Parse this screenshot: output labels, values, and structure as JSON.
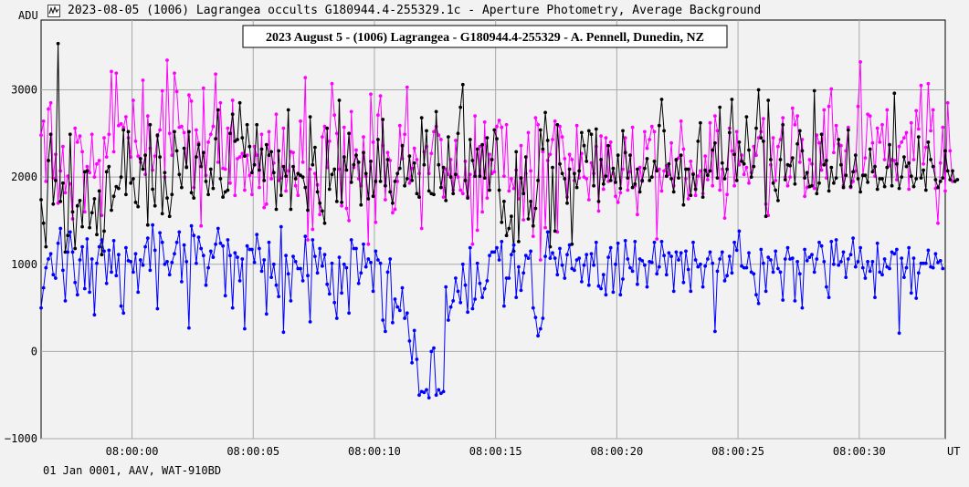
{
  "window": {
    "title": "2023-08-05 (1006) Lagrangea occults G180944.4-255329.1c - Aperture Photometry, Average Background",
    "icon": "lightcurve-app-icon"
  },
  "footer": {
    "text": "01 Jan 0001, AAV, WAT-910BD"
  },
  "chart_data": {
    "type": "line",
    "title": "2023 August 5 - (1006) Lagrangea - G180944.4-255329 - A. Pennell, Dunedin, NZ",
    "ylabel": "ADU",
    "xlabel": "UT",
    "ylim": [
      -1000,
      3800
    ],
    "xlim": [
      0,
      373
    ],
    "grid": true,
    "y_ticks": [
      "3000",
      "2000",
      "1000",
      "0",
      "−1000"
    ],
    "y_tick_values": [
      3000,
      2000,
      1000,
      0,
      -1000
    ],
    "x_ticks": [
      "08:00:00",
      "08:00:05",
      "08:00:10",
      "08:00:15",
      "08:00:20",
      "08:00:25",
      "08:00:30"
    ],
    "x_tick_values": [
      37.5,
      87.5,
      137.5,
      187.5,
      237.5,
      287.5,
      337.5
    ],
    "series": [
      {
        "color": "#ff00ff",
        "values": [
          2480,
          2640,
          1950,
          2780,
          2850,
          1990,
          2260,
          1700,
          2070,
          2350,
          1820,
          2010,
          1920,
          1520,
          2560,
          2400,
          2470,
          2290,
          1600,
          2120,
          2050,
          2490,
          2000,
          2150,
          2190,
          1560,
          2450,
          2230,
          2490,
          3210,
          2290,
          3190,
          2590,
          2610,
          2570,
          2690,
          2450,
          2230,
          2880,
          2410,
          2240,
          2170,
          3110,
          2030,
          2700,
          2330,
          2080,
          2240,
          2470,
          2540,
          2990,
          2000,
          3340,
          2500,
          2250,
          3190,
          2980,
          2570,
          2580,
          2510,
          2120,
          2940,
          2870,
          1880,
          2540,
          2390,
          1440,
          3020,
          2020,
          2400,
          2490,
          2580,
          3180,
          2170,
          2850,
          2100,
          2090,
          2560,
          1930,
          2880,
          1790,
          2210,
          2230,
          2270,
          1850,
          2250,
          2020,
          1800,
          2350,
          2250,
          1880,
          2490,
          1650,
          1690,
          2520,
          1980,
          2160,
          2720,
          1960,
          1990,
          2560,
          1840,
          2070,
          2290,
          2280,
          1900,
          1790,
          2640,
          2170,
          3140,
          1280,
          2090,
          1400,
          2040,
          1910,
          1570,
          2460,
          2580,
          2110,
          2410,
          3070,
          2710,
          2500,
          2090,
          1670,
          2570,
          1640,
          1500,
          2750,
          2110,
          2310,
          1980,
          1900,
          2460,
          2010,
          1230,
          2950,
          2400,
          1480,
          2710,
          2930,
          2360,
          1740,
          2280,
          2190,
          1590,
          1630,
          1950,
          2590,
          2210,
          2490,
          3030,
          1930,
          2100,
          2330,
          2200,
          2040,
          1410,
          2290,
          2350,
          2040,
          2270,
          2520,
          2580,
          2480,
          2430,
          1770,
          2090,
          2030,
          2200,
          1850,
          2420,
          2000,
          1850,
          1810,
          2180,
          1780,
          2030,
          1230,
          2700,
          1390,
          2350,
          1600,
          2630,
          1760,
          2260,
          2040,
          2060,
          2580,
          2650,
          2570,
          2010,
          2600,
          1840,
          1980,
          1870,
          2080,
          1750,
          2360,
          1510,
          2040,
          2510,
          2070,
          1320,
          2680,
          2600,
          1050,
          2290,
          1420,
          2190,
          2260,
          2430,
          2640,
          1370,
          2580,
          2460,
          2210,
          1770,
          2260,
          2200,
          1960,
          2590,
          1990,
          2270,
          2000,
          1980,
          1740,
          2160,
          2040,
          2350,
          1610,
          2470,
          1860,
          2450,
          1950,
          2400,
          2040,
          1780,
          1710,
          1820,
          2090,
          2450,
          1850,
          2060,
          2570,
          1900,
          1570,
          2110,
          1950,
          2520,
          2330,
          2430,
          2580,
          2520,
          1290,
          2090,
          1840,
          2070,
          2130,
          2030,
          2390,
          1900,
          2190,
          2220,
          2640,
          2320,
          1980,
          1750,
          2180,
          2040,
          1790,
          2010,
          2070,
          1810,
          2240,
          1970,
          2620,
          1900,
          2700,
          2530,
          1850,
          2090,
          1530,
          1800,
          2560,
          2300,
          1900,
          2520,
          2140,
          2250,
          2030,
          2110,
          1930,
          2050,
          2350,
          2250,
          2450,
          2520,
          2670,
          1690,
          1560,
          2140,
          2450,
          1960,
          2350,
          2430,
          2680,
          2000,
          1900,
          2000,
          2790,
          2600,
          2700,
          2170,
          2430,
          1780,
          1880,
          2200,
          2150,
          1870,
          2480,
          2390,
          2080,
          2770,
          1990,
          2810,
          3010,
          2280,
          2590,
          2380,
          2360,
          1900,
          2300,
          2570,
          1880,
          1950,
          2070,
          2810,
          3320,
          2020,
          2220,
          2720,
          2700,
          2390,
          2010,
          2560,
          2400,
          2600,
          2200,
          2770,
          2130,
          2200,
          2190,
          1970,
          2350,
          2400,
          2450,
          2510,
          1860,
          2620,
          2200,
          2760,
          2550,
          3050,
          2150,
          2340,
          3070,
          2530,
          2770,
          1870,
          1470,
          2160,
          2570,
          1840,
          2850,
          2300,
          1950
        ],
        "colors_hint": "magenta"
      },
      {
        "color": "#000000",
        "values": [
          1740,
          1470,
          1200,
          2190,
          2490,
          1690,
          1960,
          3530,
          1720,
          1930,
          1140,
          1330,
          2490,
          1600,
          1180,
          1670,
          1730,
          1430,
          2060,
          2070,
          1420,
          1590,
          1750,
          1340,
          1840,
          1110,
          1380,
          2060,
          2120,
          1620,
          1780,
          1890,
          1870,
          2000,
          2540,
          1800,
          2520,
          1930,
          1980,
          1710,
          1660,
          2210,
          2090,
          2250,
          1450,
          2600,
          1860,
          1670,
          2480,
          2230,
          1580,
          2050,
          1760,
          1550,
          1800,
          2520,
          2300,
          2030,
          1880,
          2330,
          2110,
          2520,
          1820,
          1760,
          2230,
          2370,
          2120,
          2280,
          1950,
          1800,
          2090,
          1870,
          2440,
          2770,
          1980,
          1770,
          1830,
          1850,
          2500,
          2720,
          2410,
          2430,
          2850,
          2450,
          2240,
          2600,
          2350,
          2050,
          2140,
          2600,
          2080,
          2320,
          1960,
          2370,
          2250,
          2290,
          2050,
          1630,
          2300,
          1790,
          2120,
          2010,
          2770,
          1630,
          2120,
          1980,
          2040,
          2020,
          2000,
          1880,
          1620,
          2690,
          2140,
          2340,
          1830,
          1700,
          1610,
          1470,
          2560,
          1860,
          2030,
          2090,
          1720,
          2880,
          1710,
          2230,
          2080,
          2500,
          1940,
          2140,
          2250,
          2170,
          1680,
          2280,
          2040,
          1750,
          2180,
          1780,
          1950,
          2430,
          1950,
          2660,
          1900,
          2200,
          1830,
          1700,
          1950,
          2040,
          2100,
          2360,
          1900,
          1980,
          2240,
          1960,
          2160,
          1810,
          1770,
          2680,
          2140,
          2530,
          1840,
          1810,
          1800,
          2750,
          2140,
          1880,
          2110,
          1730,
          2460,
          2000,
          1810,
          2030,
          2500,
          2800,
          3060,
          1960,
          1760,
          2430,
          2190,
          2010,
          2320,
          2010,
          2370,
          1990,
          2450,
          1850,
          2200,
          2540,
          2440,
          1850,
          1480,
          1720,
          1330,
          1410,
          1550,
          1150,
          2290,
          1260,
          1990,
          1810,
          2230,
          1520,
          1720,
          1440,
          1640,
          1960,
          2540,
          2320,
          2740,
          2420,
          1200,
          2110,
          1380,
          2600,
          2150,
          2040,
          1980,
          1700,
          2090,
          1230,
          2040,
          1880,
          2070,
          2510,
          2360,
          2180,
          2530,
          2490,
          1900,
          2550,
          1720,
          2200,
          1920,
          2010,
          2360,
          1960,
          2100,
          1940,
          2250,
          1870,
          2530,
          2280,
          1990,
          2250,
          1880,
          1920,
          2090,
          1830,
          1960,
          2100,
          2210,
          1960,
          2000,
          2180,
          2070,
          2590,
          2890,
          2530,
          2010,
          2150,
          1980,
          1830,
          2200,
          1990,
          2250,
          1680,
          2090,
          2090,
          1790,
          2030,
          1860,
          2410,
          2620,
          1770,
          2080,
          2020,
          2070,
          2310,
          2390,
          1990,
          2800,
          2160,
          1980,
          2090,
          2510,
          2890,
          2260,
          1960,
          2400,
          2180,
          2150,
          2690,
          2310,
          2000,
          2120,
          2560,
          3000,
          2450,
          2410,
          1550,
          2880,
          2200,
          1930,
          1850,
          1730,
          2200,
          2600,
          1970,
          2140,
          2130,
          2220,
          1920,
          2380,
          2530,
          2300,
          1990,
          2050,
          1890,
          1900,
          2990,
          1810,
          1930,
          2490,
          2140,
          2190,
          1840,
          2110,
          1930,
          1990,
          2430,
          2140,
          1880,
          2020,
          2540,
          1890,
          2060,
          2250,
          1980,
          1830,
          2020,
          2020,
          1940,
          2320,
          2060,
          2120,
          1860,
          1980,
          1980,
          1890,
          2110,
          2370,
          1900,
          2960,
          2150,
          1870,
          2000,
          2230,
          2120,
          2160,
          2010,
          1890,
          1980,
          2460,
          1990,
          2080,
          1850,
          2400,
          2200,
          2120,
          1970,
          1880,
          1950,
          1990,
          2300,
          2070,
          1970,
          2070,
          1950,
          1970
        ],
        "colors_hint": "black"
      },
      {
        "color": "#0000ff",
        "values": [
          500,
          730,
          960,
          1060,
          1120,
          880,
          840,
          1240,
          1410,
          930,
          580,
          1140,
          1370,
          1140,
          790,
          650,
          1050,
          1200,
          720,
          1290,
          680,
          1060,
          420,
          1010,
          1200,
          1280,
          1150,
          780,
          1160,
          910,
          1270,
          870,
          1110,
          520,
          440,
          1190,
          1040,
          1030,
          910,
          1120,
          680,
          1050,
          990,
          1200,
          1300,
          930,
          1450,
          1160,
          490,
          1360,
          1250,
          1000,
          1030,
          880,
          1020,
          1120,
          1250,
          1370,
          800,
          1220,
          1030,
          270,
          1440,
          1330,
          1010,
          1310,
          1180,
          1100,
          760,
          960,
          1150,
          1080,
          1230,
          1410,
          1240,
          1210,
          640,
          1280,
          1100,
          500,
          1130,
          1080,
          810,
          1060,
          260,
          1210,
          1170,
          1170,
          1020,
          1340,
          1180,
          920,
          1050,
          430,
          1250,
          850,
          1000,
          760,
          630,
          1430,
          220,
          1100,
          890,
          580,
          1090,
          1030,
          950,
          950,
          810,
          1320,
          870,
          340,
          1280,
          1090,
          900,
          1180,
          980,
          1110,
          770,
          660,
          1010,
          560,
          380,
          1080,
          670,
          1000,
          960,
          440,
          1280,
          1180,
          1180,
          780,
          900,
          1230,
          970,
          1060,
          1020,
          690,
          1150,
          1050,
          1010,
          360,
          230,
          910,
          1060,
          330,
          600,
          510,
          470,
          730,
          380,
          440,
          120,
          -130,
          240,
          -90,
          -500,
          -460,
          -470,
          -440,
          -530,
          0,
          40,
          -500,
          -440,
          -480,
          -460,
          740,
          360,
          510,
          580,
          840,
          690,
          560,
          1000,
          760,
          450,
          1190,
          490,
          600,
          1010,
          780,
          620,
          720,
          810,
          1100,
          1140,
          1140,
          1190,
          1050,
          1260,
          520,
          840,
          840,
          1110,
          1220,
          620,
          970,
          700,
          900,
          1100,
          1070,
          1150,
          500,
          390,
          180,
          260,
          380,
          1090,
          1370,
          1070,
          1130,
          1070,
          880,
          1180,
          990,
          840,
          1110,
          1220,
          950,
          930,
          1050,
          1070,
          800,
          990,
          1110,
          760,
          1120,
          990,
          1250,
          750,
          720,
          880,
          650,
          1080,
          1190,
          680,
          1000,
          1240,
          650,
          830,
          1270,
          1060,
          960,
          920,
          1260,
          770,
          1060,
          1040,
          990,
          740,
          1030,
          1020,
          1250,
          890,
          970,
          1260,
          1100,
          880,
          1130,
          1090,
          690,
          1140,
          1050,
          1130,
          790,
          1150,
          940,
          690,
          1250,
          1050,
          970,
          1000,
          740,
          980,
          1060,
          1140,
          1010,
          230,
          920,
          1060,
          1140,
          810,
          870,
          1090,
          900,
          1250,
          1160,
          1380,
          980,
          960,
          960,
          1130,
          910,
          890,
          650,
          550,
          1170,
          1010,
          690,
          1080,
          1050,
          910,
          1150,
          950,
          910,
          590,
          1060,
          1190,
          1060,
          1070,
          580,
          1030,
          890,
          500,
          1170,
          1040,
          1080,
          1110,
          910,
          1060,
          1250,
          1210,
          1030,
          740,
          620,
          1260,
          1000,
          1280,
          990,
          1030,
          1140,
          850,
          1060,
          1110,
          1300,
          970,
          1030,
          1190,
          960,
          840,
          1030,
          920,
          1030,
          620,
          1240,
          910,
          880,
          1060,
          970,
          950,
          1140,
          1120,
          1170,
          210,
          1070,
          850,
          960,
          1190,
          670,
          1070,
          610,
          900,
          1010,
          1010,
          1010,
          1160,
          970,
          960,
          1120,
          1020,
          1040,
          950
        ],
        "colors_hint": "blue"
      }
    ]
  }
}
